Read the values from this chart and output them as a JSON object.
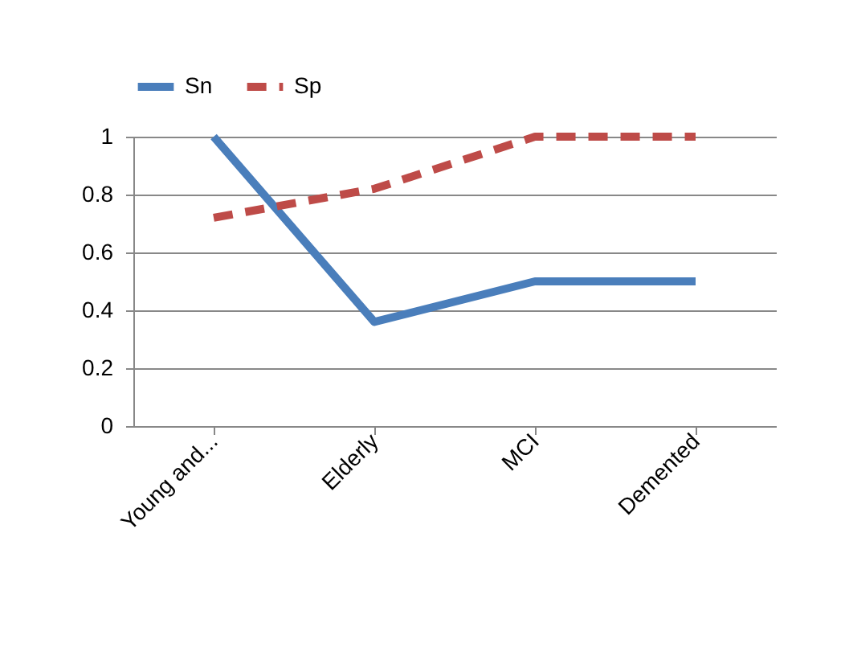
{
  "chart_data": {
    "type": "line",
    "categories": [
      "Young and...",
      "Elderly",
      "MCI",
      "Demented"
    ],
    "series": [
      {
        "name": "Sn",
        "color": "#4a7ebb",
        "line_style": "solid",
        "values": [
          1,
          0.36,
          0.5,
          0.5
        ]
      },
      {
        "name": "Sp",
        "color": "#be4b48",
        "line_style": "dashed",
        "values": [
          0.72,
          0.82,
          1,
          1
        ]
      }
    ],
    "ylim": [
      0,
      1
    ],
    "yticks": [
      0,
      0.2,
      0.4,
      0.6,
      0.8,
      1
    ],
    "grid": "y",
    "legend": "top",
    "marker": "none"
  }
}
